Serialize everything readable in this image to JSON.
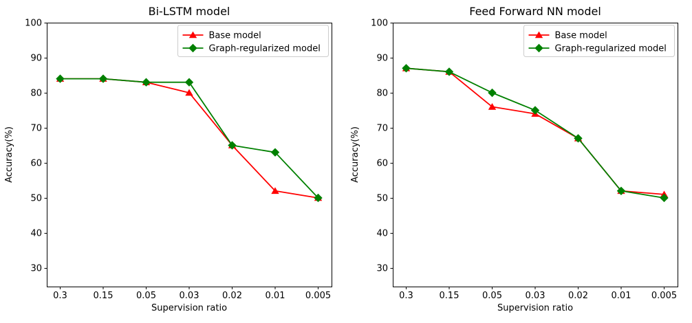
{
  "figure": {
    "background": "#ffffff",
    "axis_color": "#000000",
    "text_color": "#000000",
    "legend_border_color": "#cccccc"
  },
  "chart_data": [
    {
      "type": "line",
      "title": "Bi-LSTM model",
      "xlabel": "Supervision ratio",
      "ylabel": "Accuracy(%)",
      "categories": [
        "0.3",
        "0.15",
        "0.05",
        "0.03",
        "0.02",
        "0.01",
        "0.005"
      ],
      "yticks": [
        30,
        40,
        50,
        60,
        70,
        80,
        90,
        100
      ],
      "ylim": [
        24.7,
        100
      ],
      "grid": false,
      "legend_position": "upper right",
      "series": [
        {
          "name": "Base model",
          "color": "#ff0000",
          "marker": "triangle",
          "values": [
            84,
            84,
            83,
            80,
            65,
            52,
            50
          ]
        },
        {
          "name": "Graph-regularized model",
          "color": "#008000",
          "marker": "diamond",
          "values": [
            84,
            84,
            83,
            83,
            65,
            63,
            50
          ]
        }
      ]
    },
    {
      "type": "line",
      "title": "Feed Forward NN model",
      "xlabel": "Supervision ratio",
      "ylabel": "Accuracy(%)",
      "categories": [
        "0.3",
        "0.15",
        "0.05",
        "0.03",
        "0.02",
        "0.01",
        "0.005"
      ],
      "yticks": [
        30,
        40,
        50,
        60,
        70,
        80,
        90,
        100
      ],
      "ylim": [
        24.7,
        100
      ],
      "grid": false,
      "legend_position": "upper right",
      "series": [
        {
          "name": "Base model",
          "color": "#ff0000",
          "marker": "triangle",
          "values": [
            87,
            86,
            76,
            74,
            67,
            52,
            51
          ]
        },
        {
          "name": "Graph-regularized model",
          "color": "#008000",
          "marker": "diamond",
          "values": [
            87,
            86,
            80,
            75,
            67,
            52,
            50
          ]
        }
      ]
    }
  ]
}
